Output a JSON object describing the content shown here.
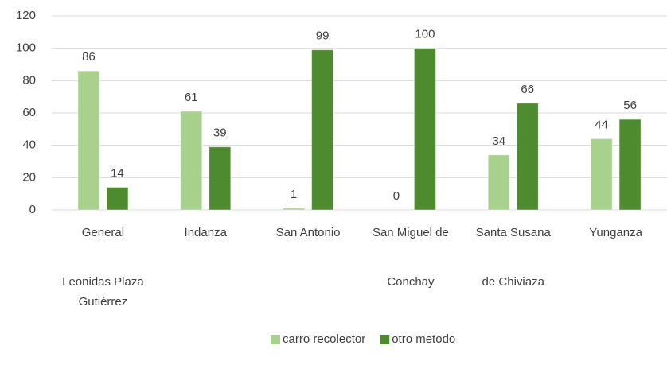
{
  "chart_data": {
    "type": "bar",
    "categories": [
      [
        "General",
        "Leonidas Plaza",
        "Gutiérrez"
      ],
      [
        "Indanza"
      ],
      [
        "San Antonio"
      ],
      [
        "San Miguel de",
        "Conchay"
      ],
      [
        "Santa Susana",
        "de Chiviaza"
      ],
      [
        "Yunganza"
      ]
    ],
    "series": [
      {
        "name": "carro recolector",
        "color": "#a9d18e",
        "values": [
          86,
          61,
          1,
          0,
          34,
          44
        ]
      },
      {
        "name": "otro metodo",
        "color": "#4e8a2e",
        "values": [
          14,
          39,
          99,
          100,
          66,
          56
        ]
      }
    ],
    "ylim": [
      0,
      120
    ],
    "yticks": [
      0,
      20,
      40,
      60,
      80,
      100,
      120
    ],
    "grid": true,
    "legend": "bottom"
  }
}
